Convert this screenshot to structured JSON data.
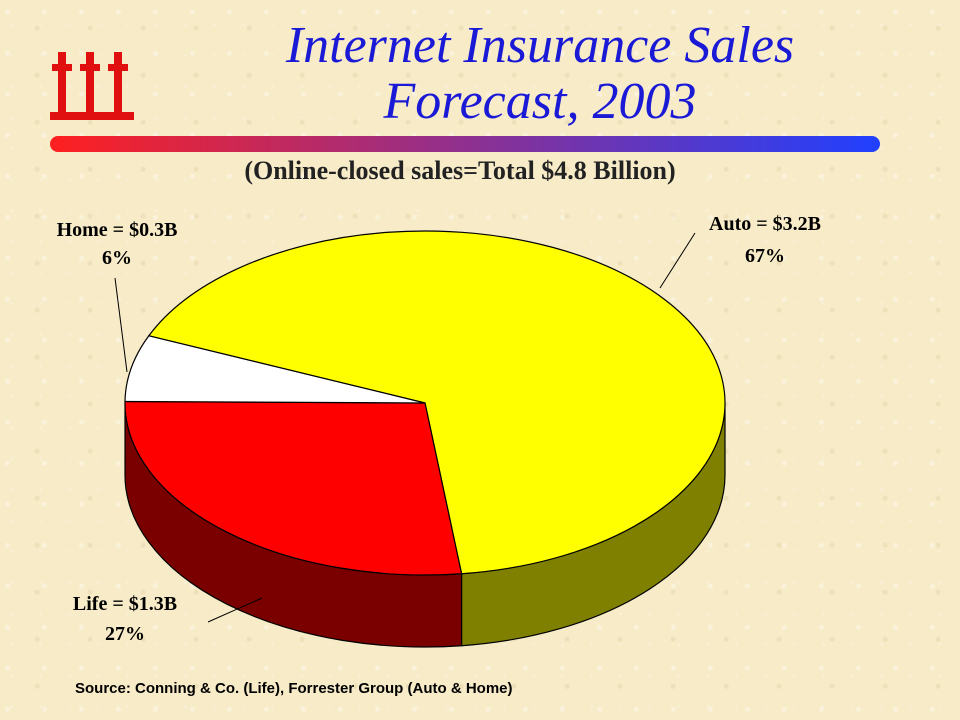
{
  "slide": {
    "title_line1": "Internet Insurance Sales",
    "title_line2": "Forecast, 2003",
    "subtitle": "(Online-closed sales=Total $4.8 Billion)",
    "source": "Source: Conning & Co. (Life), Forrester Group (Auto & Home)"
  },
  "colors": {
    "title": "#1a1ad6",
    "logo": "#e01010",
    "rule_start": "#ff2020",
    "rule_end": "#2040ff"
  },
  "chart_data": {
    "type": "pie",
    "style": "3d",
    "title": "(Online-closed sales=Total $4.8 Billion)",
    "slices": [
      {
        "name": "Auto",
        "value": 3.2,
        "percent": 67,
        "label": "Auto = $3.2B",
        "pct_label": "67%",
        "color": "#ffff00",
        "side": "#808000"
      },
      {
        "name": "Life",
        "value": 1.3,
        "percent": 27,
        "label": "Life = $1.3B",
        "pct_label": "27%",
        "color": "#ff0000",
        "side": "#7a0000"
      },
      {
        "name": "Home",
        "value": 0.3,
        "percent": 6,
        "label": "Home = $0.3B",
        "pct_label": "6%",
        "color": "#ffffff",
        "side": "#bfbfbf"
      }
    ]
  }
}
